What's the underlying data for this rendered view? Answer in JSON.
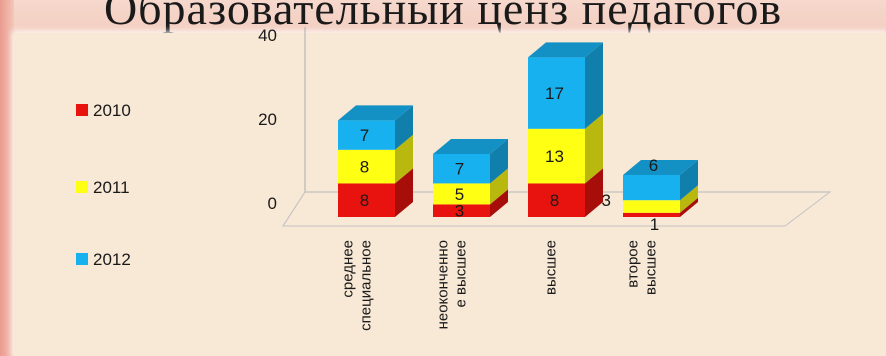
{
  "title": "Образовательный ценз педагогов",
  "legend": [
    {
      "label": "2010",
      "color": "#e8130e"
    },
    {
      "label": "2011",
      "color": "#ffff14"
    },
    {
      "label": "2012",
      "color": "#17b1ef"
    }
  ],
  "chart_data": {
    "type": "bar",
    "stacked": true,
    "three_d": true,
    "categories": [
      "среднее специальное",
      "неоконченно е высшее",
      "высшее",
      "второе высшее"
    ],
    "category_label_lines": [
      [
        "среднее",
        "специальное"
      ],
      [
        "неоконченно",
        "е высшее"
      ],
      [
        "высшее"
      ],
      [
        "второе",
        "высшее"
      ]
    ],
    "series": [
      {
        "name": "2010",
        "values": [
          8,
          3,
          8,
          1
        ],
        "color": "#e8130e"
      },
      {
        "name": "2011",
        "values": [
          8,
          5,
          13,
          3
        ],
        "color": "#ffff14"
      },
      {
        "name": "2012",
        "values": [
          7,
          7,
          17,
          6
        ],
        "color": "#17b1ef"
      }
    ],
    "ylim": [
      0,
      40
    ],
    "yticks": [
      0,
      20,
      40
    ],
    "legend_position": "left",
    "grid": false
  }
}
